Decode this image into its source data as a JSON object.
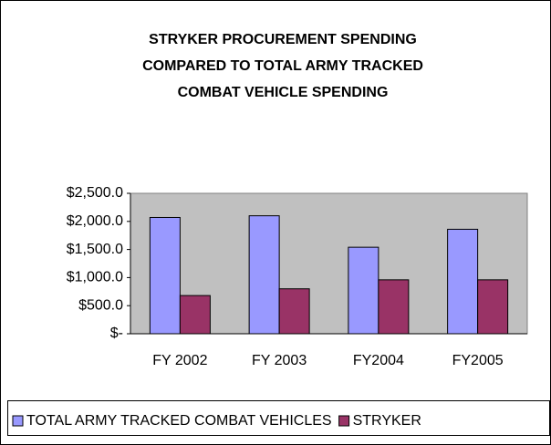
{
  "chart_data": {
    "type": "bar",
    "title": [
      "STRYKER PROCUREMENT SPENDING",
      "COMPARED TO TOTAL ARMY TRACKED",
      "COMBAT VEHICLE SPENDING"
    ],
    "categories": [
      "FY 2002",
      "FY 2003",
      "FY2004",
      "FY2005"
    ],
    "series": [
      {
        "name": "TOTAL ARMY TRACKED COMBAT VEHICLES",
        "color": "#9999ff",
        "values": [
          2070,
          2100,
          1540,
          1860
        ]
      },
      {
        "name": "STRYKER",
        "color": "#993366",
        "values": [
          680,
          800,
          960,
          960
        ]
      }
    ],
    "ylim": [
      0,
      2500
    ],
    "yticks": [
      {
        "value": 0,
        "label": "$-"
      },
      {
        "value": 500,
        "label": "$500.0"
      },
      {
        "value": 1000,
        "label": "$1,000.0"
      },
      {
        "value": 1500,
        "label": "$1,500.0"
      },
      {
        "value": 2000,
        "label": "$2,000.0"
      },
      {
        "value": 2500,
        "label": "$2,500.0"
      }
    ],
    "grid": false,
    "legend": "bottom"
  }
}
